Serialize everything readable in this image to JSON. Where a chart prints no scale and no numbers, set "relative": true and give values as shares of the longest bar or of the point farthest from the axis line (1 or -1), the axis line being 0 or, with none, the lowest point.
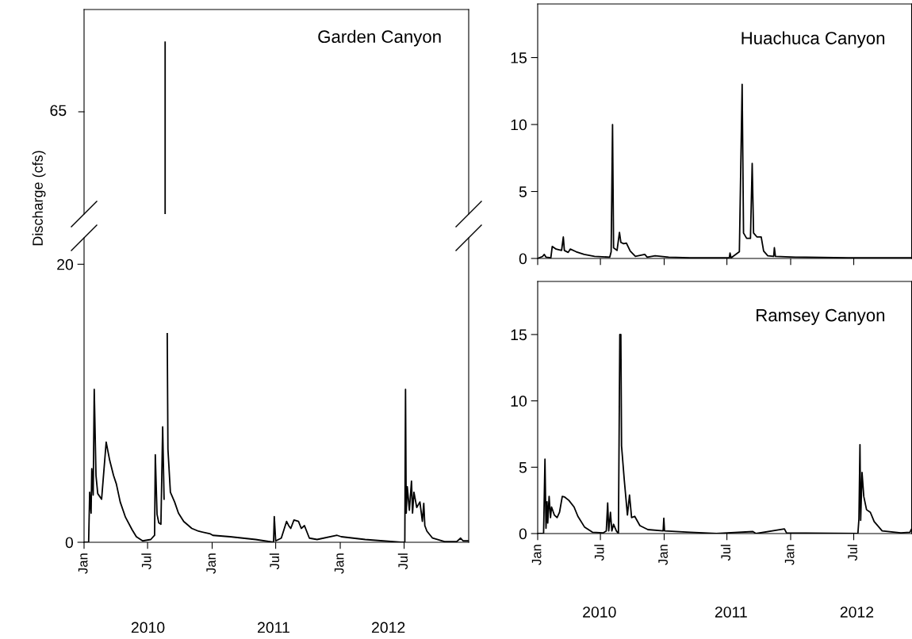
{
  "chart_data": [
    {
      "type": "line",
      "title": "Garden Canyon",
      "relative": true,
      "annotations": [
        "65"
      ],
      "xlim": [
        "2010-01-01",
        "2013-01-01"
      ],
      "x": [
        "2010-08-20",
        "2010-08-20"
      ],
      "series": [
        {
          "color": "#000000",
          "values": [
            0,
            1
          ]
        }
      ]
    },
    {
      "type": "line",
      "ylabel": "Discharge (cfs)",
      "xlim": [
        "2010-01-01",
        "2013-01-01"
      ],
      "ylim": [
        0,
        21.9
      ],
      "yticks": [
        0,
        20
      ],
      "xticks": [
        {
          "value": "2010-01-01",
          "label": "Jan"
        },
        {
          "value": "2010-07-01",
          "label": "Jul"
        },
        {
          "value": "2011-01-01",
          "label": "Jan"
        },
        {
          "value": "2011-07-01",
          "label": "Jul"
        },
        {
          "value": "2012-01-01",
          "label": "Jan"
        },
        {
          "value": "2012-07-01",
          "label": "Jul"
        }
      ],
      "x2lim": [
        "2010-01-01",
        "2013-01-01"
      ],
      "x2ticks": [
        {
          "value": "2010-07-02",
          "label": "2010"
        },
        {
          "value": "2011-06-25",
          "label": "2011"
        },
        {
          "value": "2012-05-17",
          "label": "2012"
        }
      ],
      "x": [
        "2010-01-01",
        "2010-01-14",
        "2010-01-17",
        "2010-01-21",
        "2010-01-23",
        "2010-01-27",
        "2010-01-30",
        "2010-02-04",
        "2010-02-09",
        "2010-02-20",
        "2010-03-05",
        "2010-03-15",
        "2010-03-26",
        "2010-04-03",
        "2010-04-14",
        "2010-04-29",
        "2010-05-18",
        "2010-05-30",
        "2010-06-17",
        "2010-07-10",
        "2010-07-21",
        "2010-07-23",
        "2010-07-28",
        "2010-08-02",
        "2010-08-08",
        "2010-08-13",
        "2010-08-17",
        "2010-08-20",
        "2010-08-23",
        "2010-08-26",
        "2010-08-28",
        "2010-09-04",
        "2010-09-16",
        "2010-09-27",
        "2010-10-12",
        "2010-11-04",
        "2010-11-23",
        "2010-12-27",
        "2011-01-03",
        "2011-02-21",
        "2011-05-05",
        "2011-06-25",
        "2011-06-27",
        "2011-07-01",
        "2011-07-17",
        "2011-08-01",
        "2011-08-07",
        "2011-08-13",
        "2011-08-22",
        "2011-09-04",
        "2011-09-12",
        "2011-09-21",
        "2011-10-05",
        "2011-10-27",
        "2011-12-23",
        "2012-01-04",
        "2012-03-12",
        "2012-06-22",
        "2012-07-03",
        "2012-07-05",
        "2012-07-07",
        "2012-07-10",
        "2012-07-16",
        "2012-07-22",
        "2012-07-25",
        "2012-07-29",
        "2012-08-06",
        "2012-08-15",
        "2012-08-22",
        "2012-08-26",
        "2012-08-29",
        "2012-09-04",
        "2012-09-20",
        "2012-10-24",
        "2012-11-28",
        "2012-12-09",
        "2012-12-16",
        "2013-01-01"
      ],
      "series": [
        {
          "color": "#000000",
          "values": [
            0,
            0,
            3.6,
            2.1,
            5.3,
            3.4,
            11.0,
            4.8,
            3.5,
            3.1,
            7.2,
            5.9,
            4.8,
            4.2,
            2.9,
            1.8,
            0.9,
            0.4,
            0.1,
            0.2,
            0.5,
            6.3,
            2.0,
            1.4,
            1.3,
            8.3,
            3.1,
            null,
            null,
            15.0,
            6.7,
            3.6,
            2.9,
            2.1,
            1.5,
            1.0,
            0.8,
            0.6,
            0.5,
            0.4,
            0.2,
            0,
            1.85,
            0.1,
            0.3,
            1.5,
            1.2,
            1.0,
            1.6,
            1.5,
            1.0,
            1.2,
            0.3,
            0.2,
            0.5,
            0.4,
            0.2,
            0,
            0,
            11.0,
            2.1,
            4.0,
            2.3,
            4.4,
            2.1,
            3.6,
            2.5,
            2.9,
            1.5,
            2.8,
            1.2,
            0.8,
            0.3,
            0.05,
            0.05,
            0.3,
            0.1,
            0.1
          ]
        }
      ]
    },
    {
      "type": "line",
      "title": "Huachuca Canyon",
      "xlim": [
        "2010-01-01",
        "2012-12-15"
      ],
      "ylim": [
        0,
        19
      ],
      "yticks": [
        0,
        5,
        10,
        15
      ],
      "tick_labels": "y",
      "xticks": [
        {
          "value": "2010-01-01",
          "label": null
        },
        {
          "value": "2010-07-01",
          "label": null
        },
        {
          "value": "2011-01-01",
          "label": null
        },
        {
          "value": "2011-07-01",
          "label": null
        },
        {
          "value": "2012-01-01",
          "label": null
        },
        {
          "value": "2012-07-01",
          "label": null
        }
      ],
      "x": [
        "2010-01-01",
        "2010-01-15",
        "2010-01-20",
        "2010-01-25",
        "2010-02-08",
        "2010-02-12",
        "2010-02-23",
        "2010-03-11",
        "2010-03-16",
        "2010-03-19",
        "2010-03-30",
        "2010-04-05",
        "2010-04-22",
        "2010-05-15",
        "2010-06-14",
        "2010-07-28",
        "2010-08-01",
        "2010-08-05",
        "2010-08-08",
        "2010-08-18",
        "2010-08-25",
        "2010-08-29",
        "2010-09-06",
        "2010-09-14",
        "2010-09-25",
        "2010-10-10",
        "2010-11-06",
        "2010-11-13",
        "2010-12-06",
        "2011-01-14",
        "2011-03-16",
        "2011-07-08",
        "2011-07-10",
        "2011-07-13",
        "2011-08-06",
        "2011-08-14",
        "2011-08-18",
        "2011-08-27",
        "2011-09-07",
        "2011-09-12",
        "2011-09-16",
        "2011-09-26",
        "2011-10-08",
        "2011-10-15",
        "2011-10-27",
        "2011-11-13",
        "2011-11-15",
        "2011-11-18",
        "2012-01-15",
        "2012-06-15",
        "2012-12-14"
      ],
      "series": [
        {
          "color": "#000000",
          "values": [
            0,
            0.15,
            0.3,
            0.1,
            0.05,
            0.9,
            0.7,
            0.6,
            1.6,
            0.6,
            0.45,
            0.7,
            0.5,
            0.3,
            0.15,
            0.1,
            0.5,
            10.0,
            0.8,
            0.6,
            1.95,
            1.2,
            1.1,
            1.15,
            0.55,
            0.15,
            0.3,
            0.1,
            0.2,
            0.1,
            0.05,
            0.05,
            0.4,
            0.05,
            0.5,
            13.0,
            1.9,
            1.5,
            1.5,
            7.1,
            1.9,
            1.6,
            1.6,
            0.55,
            0.2,
            0.15,
            0.8,
            0.15,
            0.1,
            0.05,
            0.05
          ]
        }
      ]
    },
    {
      "type": "line",
      "title": "Ramsey Canyon",
      "xlim": [
        "2010-01-01",
        "2012-12-15"
      ],
      "ylim": [
        0,
        19
      ],
      "yticks": [
        0,
        5,
        10,
        15
      ],
      "xticks": [
        {
          "value": "2010-01-01",
          "label": "Jan"
        },
        {
          "value": "2010-07-01",
          "label": "Jul"
        },
        {
          "value": "2011-01-01",
          "label": "Jan"
        },
        {
          "value": "2011-07-01",
          "label": "Jul"
        },
        {
          "value": "2012-01-01",
          "label": "Jan"
        },
        {
          "value": "2012-07-01",
          "label": "Jul"
        }
      ],
      "x2lim": [
        "2010-01-01",
        "2012-12-15"
      ],
      "x2ticks": [
        {
          "value": "2010-06-28",
          "label": "2010"
        },
        {
          "value": "2011-07-13",
          "label": "2011"
        },
        {
          "value": "2012-07-10",
          "label": "2012"
        }
      ],
      "x": [
        "2010-01-01",
        "2010-01-18",
        "2010-01-22",
        "2010-01-25",
        "2010-01-28",
        "2010-01-30",
        "2010-02-03",
        "2010-02-07",
        "2010-02-10",
        "2010-02-18",
        "2010-02-26",
        "2010-03-05",
        "2010-03-13",
        "2010-03-20",
        "2010-04-01",
        "2010-04-16",
        "2010-04-27",
        "2010-05-16",
        "2010-06-08",
        "2010-07-09",
        "2010-07-18",
        "2010-07-22",
        "2010-07-25",
        "2010-07-30",
        "2010-08-03",
        "2010-08-08",
        "2010-08-16",
        "2010-08-22",
        "2010-08-26",
        "2010-08-29",
        "2010-08-31",
        "2010-09-08",
        "2010-09-17",
        "2010-09-23",
        "2010-09-29",
        "2010-10-08",
        "2010-10-23",
        "2010-11-15",
        "2010-12-29",
        "2010-12-31",
        "2011-01-02",
        "2011-03-17",
        "2011-06-01",
        "2011-09-14",
        "2011-09-23",
        "2011-12-14",
        "2011-12-20",
        "2012-07-13",
        "2012-07-16",
        "2012-07-19",
        "2012-07-21",
        "2012-07-25",
        "2012-07-30",
        "2012-08-07",
        "2012-08-18",
        "2012-08-29",
        "2012-09-21",
        "2012-11-14",
        "2012-12-10",
        "2012-12-14"
      ],
      "series": [
        {
          "color": "#000000",
          "values": [
            0,
            0,
            5.6,
            0.4,
            2.4,
            0.8,
            2.8,
            1.2,
            2.0,
            1.4,
            1.2,
            1.6,
            2.8,
            2.75,
            2.5,
            2.0,
            1.3,
            0.5,
            0.1,
            0.05,
            0.2,
            2.3,
            0.2,
            1.6,
            0.2,
            0.7,
            0.2,
            0,
            15.0,
            15.0,
            6.6,
            4.0,
            1.4,
            2.9,
            1.2,
            1.3,
            0.6,
            0.3,
            0.2,
            1.15,
            0.2,
            0.1,
            0,
            0.15,
            0,
            0.35,
            0.05,
            0,
            1.1,
            6.7,
            1.0,
            4.6,
            2.8,
            1.8,
            1.6,
            0.9,
            0.2,
            0.05,
            0.1,
            0.3
          ]
        }
      ]
    }
  ]
}
